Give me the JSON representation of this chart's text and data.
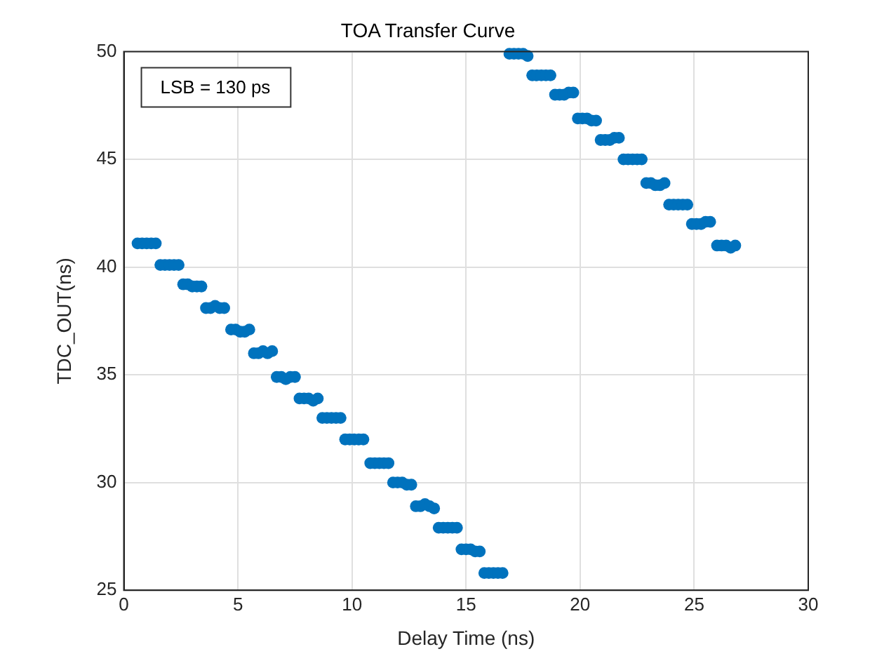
{
  "chart_data": {
    "type": "scatter",
    "title": "TOA Transfer Curve",
    "xlabel": "Delay Time (ns)",
    "ylabel": "TDC_OUT(ns)",
    "annotations": [
      "LSB = 130 ps"
    ],
    "xlim": [
      0,
      30
    ],
    "xticks": [
      0,
      5,
      10,
      15,
      20,
      25,
      30
    ],
    "ylim": [
      25,
      50
    ],
    "yticks": [
      25,
      30,
      35,
      40,
      45,
      50
    ],
    "grid": true,
    "marker": "circle",
    "series": [
      {
        "color": "#0072bd",
        "x": [
          0.6,
          0.8,
          1,
          1.2,
          1.4,
          1.6,
          1.8,
          2,
          2.2,
          2.4,
          2.6,
          2.8,
          3,
          3.2,
          3.4,
          3.6,
          3.8,
          4,
          4.2,
          4.4,
          4.7,
          4.9,
          5.1,
          5.3,
          5.5,
          5.7,
          5.9,
          6.1,
          6.3,
          6.5,
          6.7,
          6.9,
          7.1,
          7.3,
          7.5,
          7.7,
          7.9,
          8.1,
          8.3,
          8.5,
          8.7,
          8.9,
          9.1,
          9.3,
          9.5,
          9.7,
          9.9,
          10.1,
          10.3,
          10.5,
          10.8,
          11,
          11.2,
          11.4,
          11.6,
          11.8,
          12,
          12.2,
          12.4,
          12.6,
          12.8,
          13,
          13.2,
          13.4,
          13.6,
          13.8,
          14,
          14.2,
          14.4,
          14.6,
          14.8,
          15,
          15.2,
          15.4,
          15.6,
          15.8,
          16,
          16.2,
          16.4,
          16.6,
          16.9,
          17.1,
          17.3,
          17.5,
          17.7,
          17.9,
          18.1,
          18.3,
          18.5,
          18.7,
          18.9,
          19.1,
          19.3,
          19.5,
          19.7,
          19.9,
          20.1,
          20.3,
          20.5,
          20.7,
          20.9,
          21.1,
          21.3,
          21.5,
          21.7,
          21.9,
          22.1,
          22.3,
          22.5,
          22.7,
          22.9,
          23.1,
          23.3,
          23.5,
          23.7,
          23.9,
          24.1,
          24.3,
          24.5,
          24.7,
          24.9,
          25.1,
          25.3,
          25.5,
          25.7,
          26,
          26.2,
          26.4,
          26.6,
          26.8
        ],
        "values": [
          41.1,
          41.1,
          41.1,
          41.1,
          41.1,
          40.1,
          40.1,
          40.1,
          40.1,
          40.1,
          39.2,
          39.2,
          39.1,
          39.1,
          39.1,
          38.1,
          38.1,
          38.2,
          38.1,
          38.1,
          37.1,
          37.1,
          37.0,
          37.0,
          37.1,
          36.0,
          36.0,
          36.1,
          36.0,
          36.1,
          34.9,
          34.9,
          34.8,
          34.9,
          34.9,
          33.9,
          33.9,
          33.9,
          33.8,
          33.9,
          33.0,
          33.0,
          33.0,
          33.0,
          33.0,
          32.0,
          32.0,
          32.0,
          32.0,
          32.0,
          30.9,
          30.9,
          30.9,
          30.9,
          30.9,
          30.0,
          30.0,
          30.0,
          29.9,
          29.9,
          28.9,
          28.9,
          29.0,
          28.9,
          28.8,
          27.9,
          27.9,
          27.9,
          27.9,
          27.9,
          26.9,
          26.9,
          26.9,
          26.8,
          26.8,
          25.8,
          25.8,
          25.8,
          25.8,
          25.8,
          49.9,
          49.9,
          49.9,
          49.9,
          49.8,
          48.9,
          48.9,
          48.9,
          48.9,
          48.9,
          48.0,
          48.0,
          48.0,
          48.1,
          48.1,
          46.9,
          46.9,
          46.9,
          46.8,
          46.8,
          45.9,
          45.9,
          45.9,
          46.0,
          46.0,
          45.0,
          45.0,
          45.0,
          45.0,
          45.0,
          43.9,
          43.9,
          43.8,
          43.8,
          43.9,
          42.9,
          42.9,
          42.9,
          42.9,
          42.9,
          42.0,
          42.0,
          42.0,
          42.1,
          42.1,
          41.0,
          41.0,
          41.0,
          40.9,
          41.0
        ]
      }
    ]
  }
}
